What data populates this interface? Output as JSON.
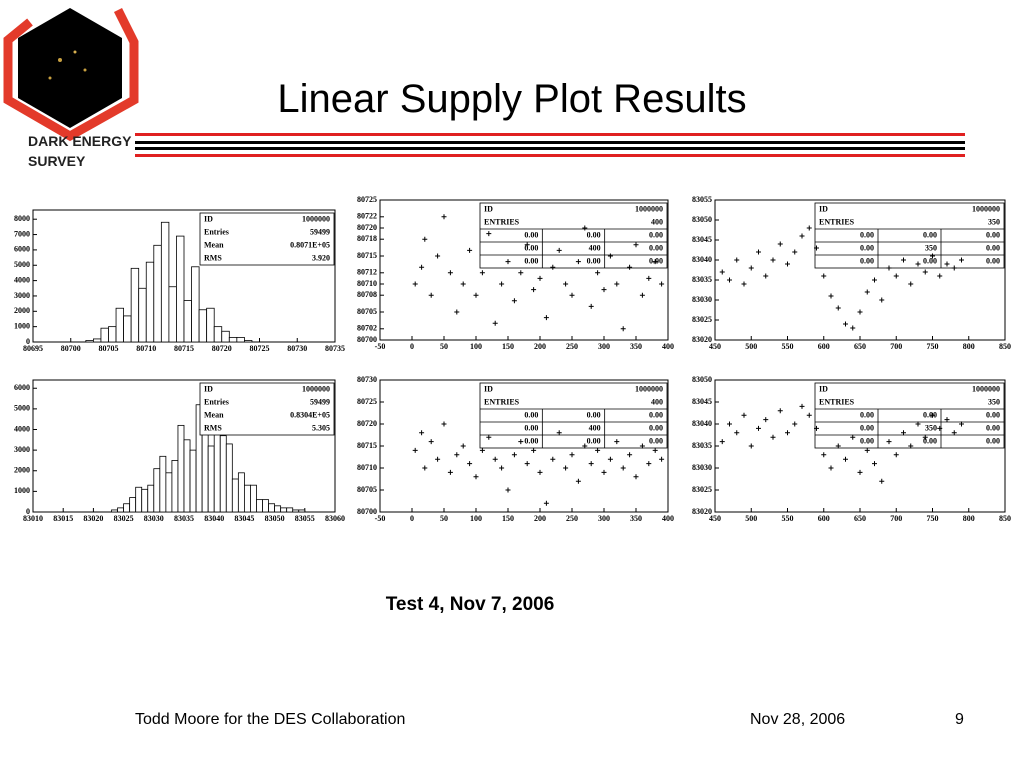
{
  "header": {
    "title": "Linear Supply Plot Results",
    "logo_lines": [
      "DARK ENERGY",
      "SURVEY"
    ]
  },
  "chart_data": [
    {
      "type": "histogram",
      "bins": [
        80702,
        80703,
        80704,
        80705,
        80706,
        80707,
        80708,
        80709,
        80710,
        80711,
        80712,
        80713,
        80714,
        80715,
        80716,
        80717,
        80718,
        80719,
        80720,
        80721,
        80722,
        80723,
        80724
      ],
      "counts": [
        100,
        200,
        900,
        1000,
        2200,
        1700,
        4800,
        3500,
        5200,
        6300,
        7800,
        3600,
        6900,
        2700,
        4900,
        2100,
        2200,
        1000,
        700,
        300,
        300,
        100
      ],
      "xlim": [
        80695,
        80735
      ],
      "xticks": [
        80695,
        80700,
        80705,
        80710,
        80715,
        80720,
        80725,
        80730,
        80735
      ],
      "ylim": [
        0,
        8600
      ],
      "yticks": [
        0,
        1000,
        2000,
        3000,
        4000,
        5000,
        6000,
        7000,
        8000
      ],
      "color": "#ffffff",
      "stats": {
        "rows": [
          [
            "ID",
            "1000000"
          ],
          [
            "Entries",
            "59499"
          ],
          [
            "Mean",
            "0.8071E+05"
          ],
          [
            "RMS",
            "3.920"
          ]
        ]
      }
    },
    {
      "type": "scatter",
      "x": [
        5,
        15,
        20,
        30,
        40,
        50,
        60,
        70,
        80,
        90,
        100,
        110,
        120,
        130,
        140,
        150,
        160,
        170,
        180,
        190,
        200,
        210,
        220,
        230,
        240,
        250,
        260,
        270,
        280,
        290,
        300,
        310,
        320,
        330,
        340,
        350,
        360,
        370,
        380,
        390
      ],
      "y": [
        80710,
        80713,
        80718,
        80708,
        80715,
        80722,
        80712,
        80705,
        80710,
        80716,
        80708,
        80712,
        80719,
        80703,
        80710,
        80714,
        80707,
        80712,
        80717,
        80709,
        80711,
        80704,
        80713,
        80716,
        80710,
        80708,
        80714,
        80720,
        80706,
        80712,
        80709,
        80715,
        80710,
        80702,
        80713,
        80717,
        80708,
        80711,
        80714,
        80710
      ],
      "xlim": [
        -50,
        400
      ],
      "xticks": [
        -50,
        0,
        50,
        100,
        150,
        200,
        250,
        300,
        350,
        400
      ],
      "ylim": [
        80700,
        80725
      ],
      "yticks": [
        80700,
        80702,
        80705,
        80708,
        80710,
        80712,
        80715,
        80718,
        80720,
        80722,
        80725
      ],
      "color": "#000000",
      "stats": {
        "rows": [
          [
            "ID",
            "1000000"
          ],
          [
            "ENTRIES",
            "400"
          ]
        ],
        "grid": [
          [
            "0.00",
            "0.00",
            "0.00"
          ],
          [
            "0.00",
            "400",
            "0.00"
          ],
          [
            "0.00",
            "0.00",
            "0.00"
          ]
        ]
      }
    },
    {
      "type": "scatter",
      "x": [
        460,
        470,
        480,
        490,
        500,
        510,
        520,
        530,
        540,
        550,
        560,
        570,
        580,
        590,
        600,
        610,
        620,
        630,
        640,
        650,
        660,
        670,
        680,
        690,
        700,
        710,
        720,
        730,
        740,
        750,
        760,
        770,
        780,
        790
      ],
      "y": [
        83037,
        83035,
        83040,
        83034,
        83038,
        83042,
        83036,
        83040,
        83044,
        83039,
        83042,
        83046,
        83048,
        83043,
        83036,
        83031,
        83028,
        83024,
        83023,
        83027,
        83032,
        83035,
        83030,
        83038,
        83036,
        83040,
        83034,
        83039,
        83037,
        83041,
        83036,
        83039,
        83038,
        83040
      ],
      "xlim": [
        450,
        850
      ],
      "xticks": [
        450,
        500,
        550,
        600,
        650,
        700,
        750,
        800,
        850
      ],
      "ylim": [
        83020,
        83055
      ],
      "yticks": [
        83020,
        83025,
        83030,
        83035,
        83040,
        83045,
        83050,
        83055
      ],
      "color": "#000000",
      "stats": {
        "rows": [
          [
            "ID",
            "1000000"
          ],
          [
            "ENTRIES",
            "350"
          ]
        ],
        "grid": [
          [
            "0.00",
            "0.00",
            "0.00"
          ],
          [
            "0.00",
            "350",
            "0.00"
          ],
          [
            "0.00",
            "0.00",
            "0.00"
          ]
        ]
      }
    },
    {
      "type": "histogram",
      "bins": [
        83023,
        83024,
        83025,
        83026,
        83027,
        83028,
        83029,
        83030,
        83031,
        83032,
        83033,
        83034,
        83035,
        83036,
        83037,
        83038,
        83039,
        83040,
        83041,
        83042,
        83043,
        83044,
        83045,
        83046,
        83047,
        83048,
        83049,
        83050,
        83051,
        83052,
        83053,
        83054,
        83055
      ],
      "counts": [
        100,
        200,
        400,
        700,
        1200,
        1100,
        1300,
        2100,
        2700,
        1900,
        2500,
        4200,
        3500,
        3000,
        5200,
        5600,
        3200,
        4800,
        3700,
        3300,
        1600,
        1900,
        1300,
        1300,
        600,
        600,
        400,
        300,
        200,
        200,
        100,
        100
      ],
      "xlim": [
        83010,
        83060
      ],
      "xticks": [
        83010,
        83015,
        83020,
        83025,
        83030,
        83035,
        83040,
        83045,
        83050,
        83055,
        83060
      ],
      "ylim": [
        0,
        6400
      ],
      "yticks": [
        0,
        1000,
        2000,
        3000,
        4000,
        5000,
        6000
      ],
      "color": "#ffffff",
      "stats": {
        "rows": [
          [
            "ID",
            "1000000"
          ],
          [
            "Entries",
            "59499"
          ],
          [
            "Mean",
            "0.8304E+05"
          ],
          [
            "RMS",
            "5.305"
          ]
        ]
      }
    },
    {
      "type": "scatter",
      "x": [
        5,
        15,
        20,
        30,
        40,
        50,
        60,
        70,
        80,
        90,
        100,
        110,
        120,
        130,
        140,
        150,
        160,
        170,
        180,
        190,
        200,
        210,
        220,
        230,
        240,
        250,
        260,
        270,
        280,
        290,
        300,
        310,
        320,
        330,
        340,
        350,
        360,
        370,
        380,
        390
      ],
      "y": [
        80714,
        80718,
        80710,
        80716,
        80712,
        80720,
        80709,
        80713,
        80715,
        80711,
        80708,
        80714,
        80717,
        80712,
        80710,
        80705,
        80713,
        80716,
        80711,
        80714,
        80709,
        80702,
        80712,
        80718,
        80710,
        80713,
        80707,
        80715,
        80711,
        80714,
        80709,
        80712,
        80716,
        80710,
        80713,
        80708,
        80715,
        80711,
        80714,
        80712
      ],
      "xlim": [
        -50,
        400
      ],
      "xticks": [
        -50,
        0,
        50,
        100,
        150,
        200,
        250,
        300,
        350,
        400
      ],
      "ylim": [
        80700,
        80730
      ],
      "yticks": [
        80700,
        80705,
        80710,
        80715,
        80720,
        80725,
        80730
      ],
      "color": "#000000",
      "stats": {
        "rows": [
          [
            "ID",
            "1000000"
          ],
          [
            "ENTRIES",
            "400"
          ]
        ],
        "grid": [
          [
            "0.00",
            "0.00",
            "0.00"
          ],
          [
            "0.00",
            "400",
            "0.00"
          ],
          [
            "0.00",
            "0.00",
            "0.00"
          ]
        ]
      }
    },
    {
      "type": "scatter",
      "x": [
        460,
        470,
        480,
        490,
        500,
        510,
        520,
        530,
        540,
        550,
        560,
        570,
        580,
        590,
        600,
        610,
        620,
        630,
        640,
        650,
        660,
        670,
        680,
        690,
        700,
        710,
        720,
        730,
        740,
        750,
        760,
        770,
        780,
        790
      ],
      "y": [
        83036,
        83040,
        83038,
        83042,
        83035,
        83039,
        83041,
        83037,
        83043,
        83038,
        83040,
        83044,
        83042,
        83039,
        83033,
        83030,
        83035,
        83032,
        83037,
        83029,
        83034,
        83031,
        83027,
        83036,
        83033,
        83038,
        83035,
        83040,
        83037,
        83042,
        83039,
        83041,
        83038,
        83040
      ],
      "xlim": [
        450,
        850
      ],
      "xticks": [
        450,
        500,
        550,
        600,
        650,
        700,
        750,
        800,
        850
      ],
      "ylim": [
        83020,
        83050
      ],
      "yticks": [
        83020,
        83025,
        83030,
        83035,
        83040,
        83045,
        83050
      ],
      "color": "#000000",
      "stats": {
        "rows": [
          [
            "ID",
            "1000000"
          ],
          [
            "ENTRIES",
            "350"
          ]
        ],
        "grid": [
          [
            "0.00",
            "0.00",
            "0.00"
          ],
          [
            "0.00",
            "350",
            "0.00"
          ],
          [
            "0.00",
            "0.00",
            "0.00"
          ]
        ]
      }
    }
  ],
  "caption": "Test 4, Nov 7, 2006",
  "footer": {
    "author": "Todd Moore for the DES Collaboration",
    "date": "Nov 28, 2006",
    "page": "9"
  }
}
